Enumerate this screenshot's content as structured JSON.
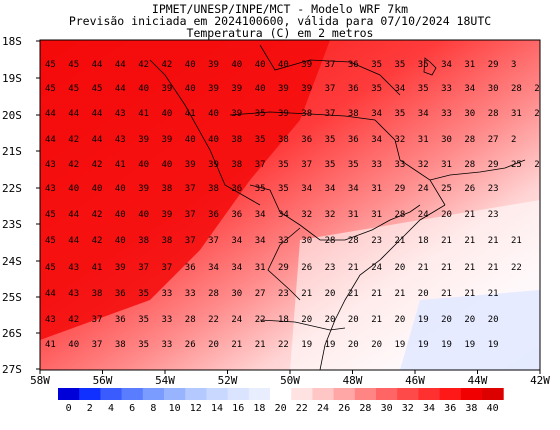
{
  "title": {
    "line1": "IPMET/UNESP/INPE/MCT - Modelo WRF 7km",
    "line2": "Previsão iniciada em 2024100600, válida para 07/10/2024 18UTC",
    "line3": "Temperatura (C) em 2 metros"
  },
  "map": {
    "lat_labels": [
      "18S",
      "19S",
      "20S",
      "21S",
      "22S",
      "23S",
      "24S",
      "25S",
      "26S",
      "27S"
    ],
    "lon_labels": [
      "58W",
      "56W",
      "54W",
      "52W",
      "50W",
      "48W",
      "46W",
      "44W",
      "42W"
    ]
  },
  "colorbar": {
    "labels": [
      "0",
      "2",
      "4",
      "6",
      "8",
      "10",
      "12",
      "14",
      "16",
      "18",
      "20",
      "22",
      "24",
      "26",
      "28",
      "30",
      "32",
      "34",
      "36",
      "38",
      "40"
    ],
    "colors": [
      "#0000d8",
      "#1030ff",
      "#3a5cff",
      "#5a7dff",
      "#7a9bff",
      "#98b4ff",
      "#b3c9ff",
      "#c8d8ff",
      "#dbe4ff",
      "#e9eeff",
      "#ffffff",
      "#ffe2e2",
      "#ffc6c6",
      "#ffa6a6",
      "#ff8585",
      "#ff6565",
      "#ff4a4a",
      "#ff3030",
      "#ff1818",
      "#f00000",
      "#dd0000"
    ]
  },
  "temperature_rows": [
    {
      "lat": "18.4S",
      "values": [
        "45",
        "45",
        "44",
        "44",
        "42",
        "42",
        "40",
        "39",
        "40",
        "40",
        "40",
        "39",
        "37",
        "36",
        "35",
        "35",
        "35",
        "34",
        "31",
        "29",
        "3"
      ]
    },
    {
      "lat": "19.1S",
      "values": [
        "45",
        "45",
        "45",
        "44",
        "40",
        "39",
        "40",
        "39",
        "39",
        "40",
        "39",
        "39",
        "37",
        "36",
        "35",
        "34",
        "35",
        "33",
        "34",
        "30",
        "28",
        "2"
      ]
    },
    {
      "lat": "19.8S",
      "values": [
        "44",
        "44",
        "44",
        "43",
        "41",
        "40",
        "41",
        "40",
        "39",
        "35",
        "39",
        "38",
        "37",
        "38",
        "34",
        "35",
        "34",
        "33",
        "30",
        "28",
        "31",
        "2"
      ]
    },
    {
      "lat": "20.6S",
      "values": [
        "44",
        "42",
        "44",
        "43",
        "39",
        "39",
        "40",
        "40",
        "38",
        "35",
        "38",
        "36",
        "35",
        "36",
        "34",
        "32",
        "31",
        "30",
        "28",
        "27",
        "2"
      ]
    },
    {
      "lat": "21.3S",
      "values": [
        "43",
        "42",
        "42",
        "41",
        "40",
        "40",
        "39",
        "39",
        "38",
        "37",
        "35",
        "37",
        "35",
        "35",
        "33",
        "33",
        "32",
        "31",
        "28",
        "29",
        "25",
        "2"
      ]
    },
    {
      "lat": "22.0S",
      "values": [
        "43",
        "40",
        "40",
        "40",
        "39",
        "38",
        "37",
        "38",
        "36",
        "35",
        "35",
        "34",
        "34",
        "34",
        "31",
        "29",
        "24",
        "25",
        "26",
        "23"
      ]
    },
    {
      "lat": "22.8S",
      "values": [
        "45",
        "44",
        "42",
        "40",
        "40",
        "39",
        "37",
        "36",
        "36",
        "34",
        "34",
        "32",
        "32",
        "31",
        "31",
        "28",
        "24",
        "20",
        "21",
        "23"
      ]
    },
    {
      "lat": "23.6S",
      "values": [
        "45",
        "44",
        "42",
        "40",
        "38",
        "38",
        "37",
        "37",
        "34",
        "34",
        "33",
        "30",
        "28",
        "28",
        "23",
        "21",
        "18",
        "21",
        "21",
        "21",
        "21"
      ]
    },
    {
      "lat": "24.3S",
      "values": [
        "45",
        "43",
        "41",
        "39",
        "37",
        "37",
        "36",
        "34",
        "34",
        "31",
        "29",
        "26",
        "23",
        "21",
        "24",
        "20",
        "21",
        "21",
        "21",
        "21",
        "22"
      ]
    },
    {
      "lat": "25.0S",
      "values": [
        "44",
        "43",
        "38",
        "36",
        "35",
        "33",
        "33",
        "28",
        "30",
        "27",
        "23",
        "21",
        "20",
        "21",
        "21",
        "21",
        "20",
        "21",
        "21",
        "21"
      ]
    },
    {
      "lat": "25.7S",
      "values": [
        "43",
        "42",
        "37",
        "36",
        "35",
        "33",
        "28",
        "22",
        "24",
        "22",
        "18",
        "20",
        "20",
        "20",
        "21",
        "20",
        "19",
        "20",
        "20",
        "20"
      ]
    },
    {
      "lat": "26.5S",
      "values": [
        "41",
        "40",
        "37",
        "38",
        "35",
        "33",
        "26",
        "20",
        "21",
        "21",
        "22",
        "19",
        "19",
        "20",
        "20",
        "19",
        "19",
        "19",
        "19",
        "19"
      ]
    }
  ]
}
